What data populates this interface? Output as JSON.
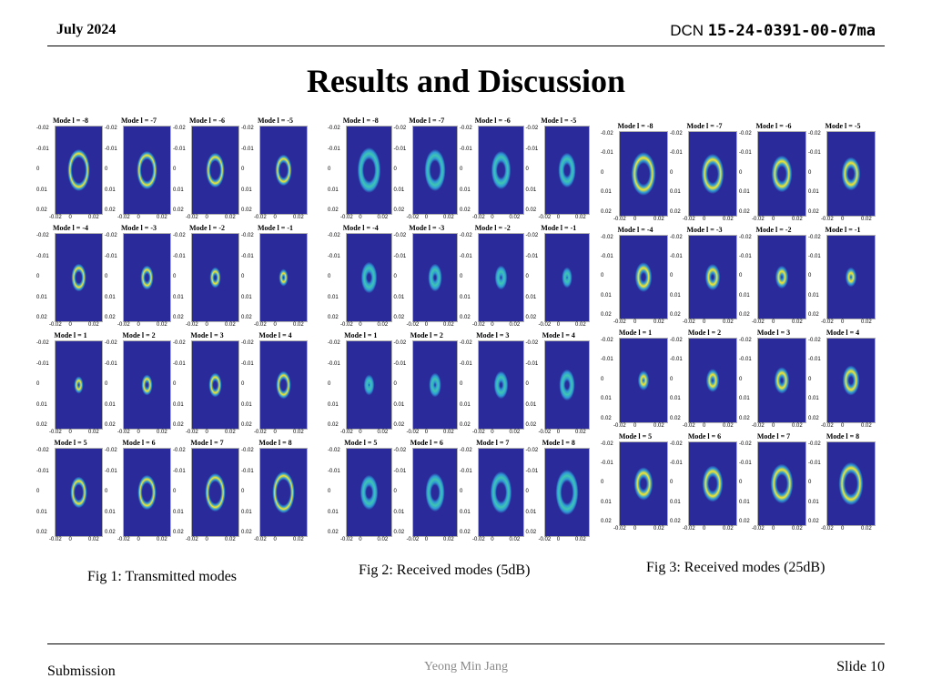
{
  "header": {
    "date": "July 2024",
    "doc_prefix": "DCN ",
    "doc_number": "15-24-0391-00-07ma"
  },
  "title": "Results and Discussion",
  "figures": [
    {
      "caption": "Fig 1: Transmitted modes",
      "noise": 0
    },
    {
      "caption": "Fig 2: Received modes (5dB)",
      "noise": 1
    },
    {
      "caption": "Fig 3: Received modes (25dB)",
      "noise": 0.25
    }
  ],
  "mode_labels": [
    "Mode l = -8",
    "Mode l = -7",
    "Mode l = -6",
    "Mode l = -5",
    "Mode l = -4",
    "Mode l = -3",
    "Mode l = -2",
    "Mode l = -1",
    "Mode l = 1",
    "Mode l = 2",
    "Mode l = 3",
    "Mode l = 4",
    "Mode l = 5",
    "Mode l = 6",
    "Mode l = 7",
    "Mode l = 8"
  ],
  "mode_values": [
    -8,
    -7,
    -6,
    -5,
    -4,
    -3,
    -2,
    -1,
    1,
    2,
    3,
    4,
    5,
    6,
    7,
    8
  ],
  "y_ticks": [
    "-0.02",
    "-0.01",
    "0",
    "0.01",
    "0.02"
  ],
  "x_ticks": [
    "-0.02",
    "0",
    "0.02"
  ],
  "colors": {
    "dark": "#2a2a9a",
    "mid": "#2f9bd6",
    "cyan": "#3fc6b0",
    "yellow": "#f5e62a",
    "footer_gray": "#8a8a8a"
  },
  "footer": {
    "left": "Submission",
    "center": "Yeong Min Jang",
    "right": "Slide 10"
  }
}
